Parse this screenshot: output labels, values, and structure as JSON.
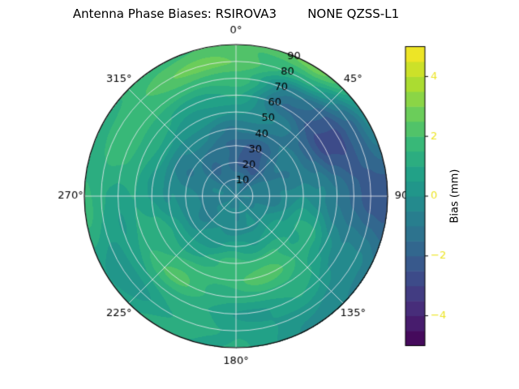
{
  "chart_data": {
    "type": "heatmap",
    "subtype": "polar_filled_contour",
    "title": "Antenna Phase Biases: RSIROVA3        NONE QZSS-L1",
    "theta_zero_location": "N",
    "theta_direction": "clockwise",
    "azimuth_tick_angles": [
      0,
      45,
      90,
      135,
      180,
      225,
      270,
      315
    ],
    "azimuth_tick_labels": [
      "0°",
      "45°",
      "90",
      "135°",
      "180°",
      "225°",
      "270°",
      "315°"
    ],
    "radial_ticks": [
      10,
      20,
      30,
      40,
      50,
      60,
      70,
      80,
      90
    ],
    "radial_tick_labels": [
      "10",
      "20",
      "30",
      "40",
      "50",
      "60",
      "70",
      "80",
      "90"
    ],
    "radial_label_angle": 22.5,
    "r_max": 90,
    "contour_step": 0.5,
    "colorbar": {
      "label": "Bias (mm)",
      "min": -5,
      "max": 5,
      "ticks": [
        -4,
        -2,
        0,
        2,
        4
      ],
      "tick_labels": [
        "−4",
        "−2",
        "0",
        "2",
        "4"
      ],
      "colormap": "viridis"
    },
    "colormap_stops": [
      {
        "t": 0.0,
        "hex": "#440154"
      },
      {
        "t": 0.11,
        "hex": "#482878"
      },
      {
        "t": 0.22,
        "hex": "#3e4a89"
      },
      {
        "t": 0.33,
        "hex": "#31688e"
      },
      {
        "t": 0.44,
        "hex": "#26828e"
      },
      {
        "t": 0.56,
        "hex": "#1f9e89"
      },
      {
        "t": 0.67,
        "hex": "#35b779"
      },
      {
        "t": 0.78,
        "hex": "#6ece58"
      },
      {
        "t": 0.89,
        "hex": "#b5de2b"
      },
      {
        "t": 1.0,
        "hex": "#fde725"
      }
    ],
    "grid": {
      "azimuths_deg": [
        0,
        30,
        60,
        90,
        120,
        150,
        180,
        210,
        240,
        270,
        300,
        330
      ],
      "radii": [
        0,
        10,
        20,
        30,
        40,
        50,
        60,
        70,
        80,
        90
      ],
      "values_mm": [
        [
          -0.8,
          -0.8,
          -0.8,
          -0.8,
          -0.8,
          -0.8,
          -0.8,
          -0.8,
          -0.8,
          -0.8,
          -0.8,
          -0.8
        ],
        [
          -1.2,
          -1.4,
          -1.0,
          -0.6,
          -0.4,
          -0.3,
          -0.3,
          -0.4,
          -0.5,
          -0.6,
          -0.8,
          -1.0
        ],
        [
          -2.0,
          -2.2,
          -1.2,
          -0.6,
          -0.2,
          0.0,
          -0.1,
          -0.3,
          -0.5,
          -0.7,
          -0.9,
          -1.5
        ],
        [
          -1.8,
          -2.0,
          -1.0,
          -0.3,
          0.4,
          0.8,
          0.6,
          0.3,
          0.0,
          -0.4,
          -0.8,
          -1.2
        ],
        [
          -0.8,
          -1.2,
          -0.8,
          0.0,
          1.0,
          1.7,
          1.5,
          1.2,
          0.6,
          0.0,
          -0.4,
          -0.6
        ],
        [
          0.2,
          -0.8,
          -1.5,
          -0.5,
          1.2,
          2.1,
          1.9,
          1.8,
          1.2,
          0.7,
          0.4,
          0.3
        ],
        [
          0.8,
          -1.5,
          -2.6,
          -1.2,
          0.5,
          1.4,
          1.2,
          2.0,
          1.5,
          1.0,
          1.2,
          1.0
        ],
        [
          1.6,
          -0.6,
          -2.9,
          -1.6,
          -0.2,
          0.8,
          0.6,
          1.2,
          0.8,
          0.6,
          1.8,
          1.7
        ],
        [
          2.6,
          1.2,
          -1.8,
          -2.0,
          -0.6,
          0.3,
          1.0,
          0.8,
          0.2,
          1.0,
          1.9,
          2.3
        ],
        [
          2.2,
          2.6,
          -0.2,
          -2.4,
          -1.0,
          0.2,
          0.8,
          1.2,
          0.6,
          1.6,
          1.2,
          1.8
        ]
      ]
    }
  }
}
